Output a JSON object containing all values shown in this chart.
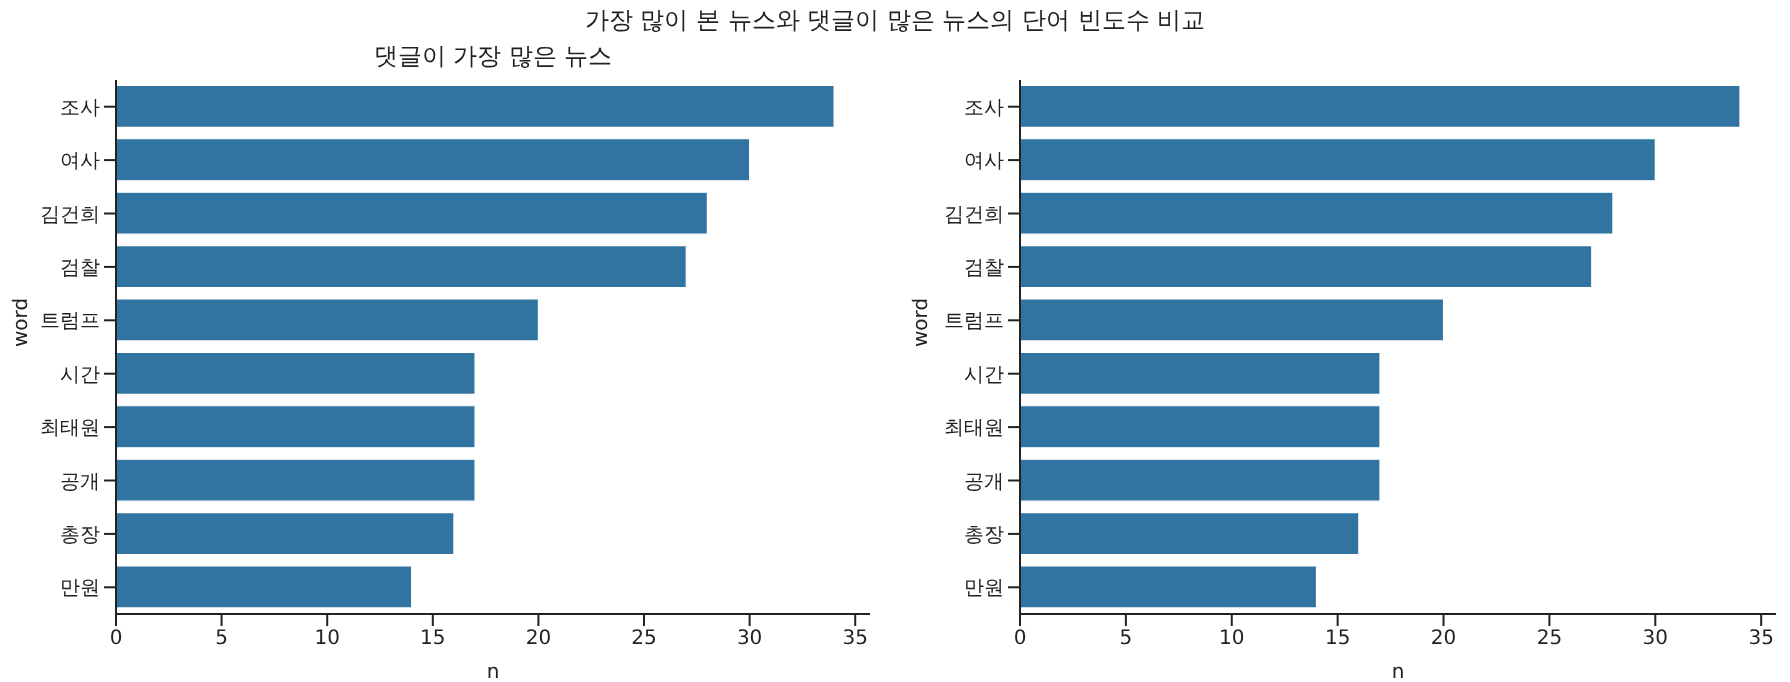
{
  "chart_data": [
    {
      "type": "bar",
      "title": "가장 많이 본 뉴스와 댓글이 많은 뉴스의 단어 빈도수 비교",
      "subtitle": "댓글이 가장 많은 뉴스",
      "orientation": "horizontal",
      "xlabel": "n",
      "ylabel": "word",
      "categories": [
        "조사",
        "여사",
        "김건희",
        "검찰",
        "트럼프",
        "시간",
        "최태원",
        "공개",
        "총장",
        "만원"
      ],
      "values": [
        34,
        30,
        28,
        27,
        20,
        17,
        17,
        17,
        16,
        14
      ],
      "color": "#3274a1",
      "xlim": [
        0,
        35.7
      ],
      "xticks": [
        0,
        5,
        10,
        15,
        20,
        25,
        30,
        35
      ]
    },
    {
      "type": "bar",
      "orientation": "horizontal",
      "xlabel": "n",
      "ylabel": "word",
      "categories": [
        "조사",
        "여사",
        "김건희",
        "검찰",
        "트럼프",
        "시간",
        "최태원",
        "공개",
        "총장",
        "만원"
      ],
      "values": [
        34,
        30,
        28,
        27,
        20,
        17,
        17,
        17,
        16,
        14
      ],
      "color": "#3274a1",
      "xlim": [
        0,
        35.7
      ],
      "xticks": [
        0,
        5,
        10,
        15,
        20,
        25,
        30,
        35
      ]
    }
  ]
}
